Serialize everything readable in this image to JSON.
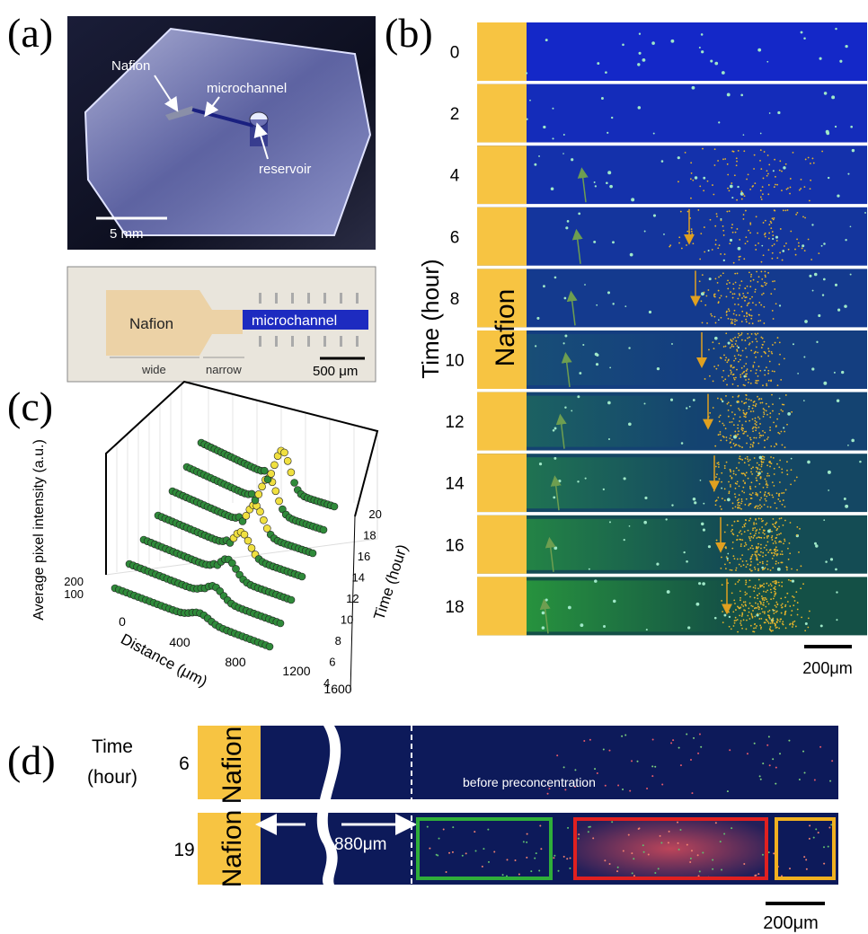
{
  "panels": {
    "a": {
      "label": "(a)",
      "photo": {
        "labels": [
          "Nafion",
          "microchannel",
          "reservoir"
        ],
        "scale_bar": "5 mm"
      },
      "micrograph": {
        "labels": [
          "Nafion",
          "microchannel",
          "wide",
          "narrow"
        ],
        "scale_bar": "500 μm"
      }
    },
    "b": {
      "label": "(b)",
      "axis_label": "Time (hour)",
      "times": [
        "0",
        "2",
        "4",
        "6",
        "8",
        "10",
        "12",
        "14",
        "16",
        "18"
      ],
      "band_label": "Nafion",
      "scale_bar": "200μm"
    },
    "c": {
      "label": "(c)",
      "z_label": "Average pixel intensity (a.u.)",
      "z_ticks": [
        "200",
        "100"
      ],
      "x_label": "Distance (μm)",
      "x_ticks": [
        "0",
        "400",
        "800",
        "1200",
        "1600"
      ],
      "y_label": "Time (hour)",
      "y_ticks": [
        "4",
        "6",
        "8",
        "10",
        "12",
        "14",
        "16",
        "18",
        "20"
      ]
    },
    "d": {
      "label": "(d)",
      "axis_label": [
        "Time",
        "(hour)"
      ],
      "times": [
        "6",
        "19"
      ],
      "band_label": "Nafion",
      "annotation": "before preconcentration",
      "distance": "880μm",
      "scale_bar": "200μm"
    }
  }
}
